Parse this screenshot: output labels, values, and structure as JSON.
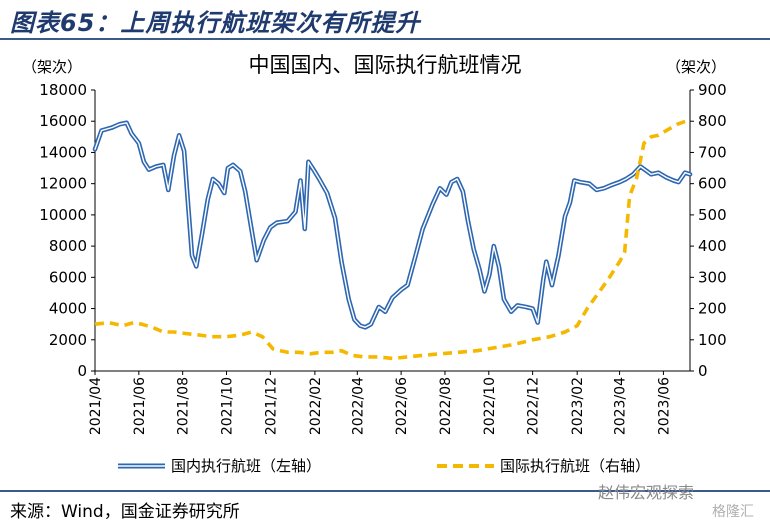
{
  "figure": {
    "title": "图表65：上周执行航班架次有所提升",
    "source": "来源：Wind，国金证券研究所",
    "watermark": "赵伟宏观探索",
    "watermark2": "格隆汇"
  },
  "chart_data": {
    "type": "line",
    "title": "中国国内、国际执行航班情况",
    "left_axis_unit": "（架次）",
    "right_axis_unit": "（架次）",
    "left_ylim": [
      0,
      18000
    ],
    "left_yticks": [
      0,
      2000,
      4000,
      6000,
      8000,
      10000,
      12000,
      14000,
      16000,
      18000
    ],
    "right_ylim": [
      0,
      900
    ],
    "right_yticks": [
      0,
      100,
      200,
      300,
      400,
      500,
      600,
      700,
      800,
      900
    ],
    "x_ticks": [
      "2021/04",
      "2021/06",
      "2021/08",
      "2021/10",
      "2021/12",
      "2022/02",
      "2022/04",
      "2022/06",
      "2022/08",
      "2022/10",
      "2022/12",
      "2023/02",
      "2023/04",
      "2023/06"
    ],
    "x_range": [
      "2021-04-01",
      "2023-07-08"
    ],
    "grid": false,
    "legend_position": "bottom",
    "colors": {
      "domestic_outer": "#2e67b1",
      "domestic_inner": "#ffffff",
      "international": "#f5b800"
    },
    "series": [
      {
        "name": "国内执行航班（左轴）",
        "axis": "left",
        "style": "double-line",
        "points": [
          [
            "2021-04-01",
            14200
          ],
          [
            "2021-04-10",
            15400
          ],
          [
            "2021-04-25",
            15600
          ],
          [
            "2021-05-05",
            15800
          ],
          [
            "2021-05-15",
            15900
          ],
          [
            "2021-05-22",
            15200
          ],
          [
            "2021-06-01",
            14600
          ],
          [
            "2021-06-08",
            13400
          ],
          [
            "2021-06-15",
            12900
          ],
          [
            "2021-06-25",
            13100
          ],
          [
            "2021-07-05",
            13200
          ],
          [
            "2021-07-12",
            11600
          ],
          [
            "2021-07-20",
            13800
          ],
          [
            "2021-07-27",
            15100
          ],
          [
            "2021-08-03",
            14100
          ],
          [
            "2021-08-08",
            11000
          ],
          [
            "2021-08-14",
            7400
          ],
          [
            "2021-08-20",
            6700
          ],
          [
            "2021-08-28",
            8800
          ],
          [
            "2021-09-05",
            11000
          ],
          [
            "2021-09-12",
            12300
          ],
          [
            "2021-09-20",
            12000
          ],
          [
            "2021-09-28",
            11400
          ],
          [
            "2021-10-03",
            13000
          ],
          [
            "2021-10-10",
            13200
          ],
          [
            "2021-10-20",
            12800
          ],
          [
            "2021-10-27",
            11500
          ],
          [
            "2021-11-05",
            9000
          ],
          [
            "2021-11-12",
            7100
          ],
          [
            "2021-11-22",
            8400
          ],
          [
            "2021-12-01",
            9200
          ],
          [
            "2021-12-10",
            9500
          ],
          [
            "2021-12-25",
            9600
          ],
          [
            "2022-01-05",
            10200
          ],
          [
            "2022-01-12",
            12200
          ],
          [
            "2022-01-18",
            9100
          ],
          [
            "2022-01-23",
            13400
          ],
          [
            "2022-01-30",
            12900
          ],
          [
            "2022-02-07",
            12300
          ],
          [
            "2022-02-18",
            11400
          ],
          [
            "2022-03-01",
            9800
          ],
          [
            "2022-03-10",
            7000
          ],
          [
            "2022-03-20",
            4600
          ],
          [
            "2022-03-28",
            3300
          ],
          [
            "2022-04-05",
            2900
          ],
          [
            "2022-04-12",
            2800
          ],
          [
            "2022-04-20",
            3000
          ],
          [
            "2022-05-01",
            4100
          ],
          [
            "2022-05-10",
            3800
          ],
          [
            "2022-05-20",
            4700
          ],
          [
            "2022-06-01",
            5200
          ],
          [
            "2022-06-10",
            5500
          ],
          [
            "2022-06-20",
            7200
          ],
          [
            "2022-07-01",
            9100
          ],
          [
            "2022-07-15",
            10700
          ],
          [
            "2022-07-25",
            11700
          ],
          [
            "2022-08-03",
            11300
          ],
          [
            "2022-08-10",
            12100
          ],
          [
            "2022-08-18",
            12300
          ],
          [
            "2022-08-26",
            11500
          ],
          [
            "2022-09-02",
            9600
          ],
          [
            "2022-09-10",
            7800
          ],
          [
            "2022-09-18",
            6500
          ],
          [
            "2022-09-25",
            5100
          ],
          [
            "2022-10-02",
            6200
          ],
          [
            "2022-10-08",
            8000
          ],
          [
            "2022-10-15",
            6700
          ],
          [
            "2022-10-22",
            4600
          ],
          [
            "2022-11-01",
            3800
          ],
          [
            "2022-11-10",
            4200
          ],
          [
            "2022-11-22",
            4100
          ],
          [
            "2022-12-01",
            4000
          ],
          [
            "2022-12-08",
            3100
          ],
          [
            "2022-12-16",
            5900
          ],
          [
            "2022-12-20",
            7000
          ],
          [
            "2022-12-28",
            5500
          ],
          [
            "2023-01-06",
            7400
          ],
          [
            "2023-01-15",
            9900
          ],
          [
            "2023-01-22",
            10800
          ],
          [
            "2023-01-28",
            12200
          ],
          [
            "2023-02-05",
            12100
          ],
          [
            "2023-02-18",
            12000
          ],
          [
            "2023-02-28",
            11600
          ],
          [
            "2023-03-10",
            11700
          ],
          [
            "2023-03-20",
            11900
          ],
          [
            "2023-04-01",
            12100
          ],
          [
            "2023-04-10",
            12300
          ],
          [
            "2023-04-20",
            12600
          ],
          [
            "2023-04-30",
            13100
          ],
          [
            "2023-05-06",
            12900
          ],
          [
            "2023-05-15",
            12600
          ],
          [
            "2023-05-25",
            12700
          ],
          [
            "2023-06-05",
            12400
          ],
          [
            "2023-06-15",
            12200
          ],
          [
            "2023-06-22",
            12100
          ],
          [
            "2023-07-01",
            12700
          ],
          [
            "2023-07-08",
            12600
          ]
        ]
      },
      {
        "name": "国际执行航班（右轴）",
        "axis": "right",
        "style": "dashed",
        "points": [
          [
            "2021-04-01",
            150
          ],
          [
            "2021-04-20",
            155
          ],
          [
            "2021-05-10",
            145
          ],
          [
            "2021-05-25",
            155
          ],
          [
            "2021-06-05",
            150
          ],
          [
            "2021-06-20",
            140
          ],
          [
            "2021-07-05",
            125
          ],
          [
            "2021-07-20",
            125
          ],
          [
            "2021-08-05",
            120
          ],
          [
            "2021-08-25",
            115
          ],
          [
            "2021-09-10",
            110
          ],
          [
            "2021-10-01",
            110
          ],
          [
            "2021-10-20",
            115
          ],
          [
            "2021-11-05",
            125
          ],
          [
            "2021-11-20",
            110
          ],
          [
            "2021-12-05",
            70
          ],
          [
            "2021-12-25",
            60
          ],
          [
            "2022-01-10",
            60
          ],
          [
            "2022-01-25",
            55
          ],
          [
            "2022-02-10",
            60
          ],
          [
            "2022-02-25",
            60
          ],
          [
            "2022-03-10",
            65
          ],
          [
            "2022-03-25",
            50
          ],
          [
            "2022-04-10",
            45
          ],
          [
            "2022-05-01",
            45
          ],
          [
            "2022-05-20",
            40
          ],
          [
            "2022-06-10",
            45
          ],
          [
            "2022-07-01",
            50
          ],
          [
            "2022-07-25",
            55
          ],
          [
            "2022-08-20",
            60
          ],
          [
            "2022-09-15",
            65
          ],
          [
            "2022-10-10",
            75
          ],
          [
            "2022-11-05",
            85
          ],
          [
            "2022-12-01",
            100
          ],
          [
            "2022-12-25",
            110
          ],
          [
            "2023-01-15",
            125
          ],
          [
            "2023-02-01",
            145
          ],
          [
            "2023-02-15",
            200
          ],
          [
            "2023-03-01",
            245
          ],
          [
            "2023-03-15",
            290
          ],
          [
            "2023-04-01",
            350
          ],
          [
            "2023-04-08",
            380
          ],
          [
            "2023-04-15",
            560
          ],
          [
            "2023-04-25",
            620
          ],
          [
            "2023-05-05",
            730
          ],
          [
            "2023-05-15",
            750
          ],
          [
            "2023-05-25",
            755
          ],
          [
            "2023-06-05",
            770
          ],
          [
            "2023-06-20",
            790
          ],
          [
            "2023-07-08",
            805
          ]
        ]
      }
    ]
  }
}
